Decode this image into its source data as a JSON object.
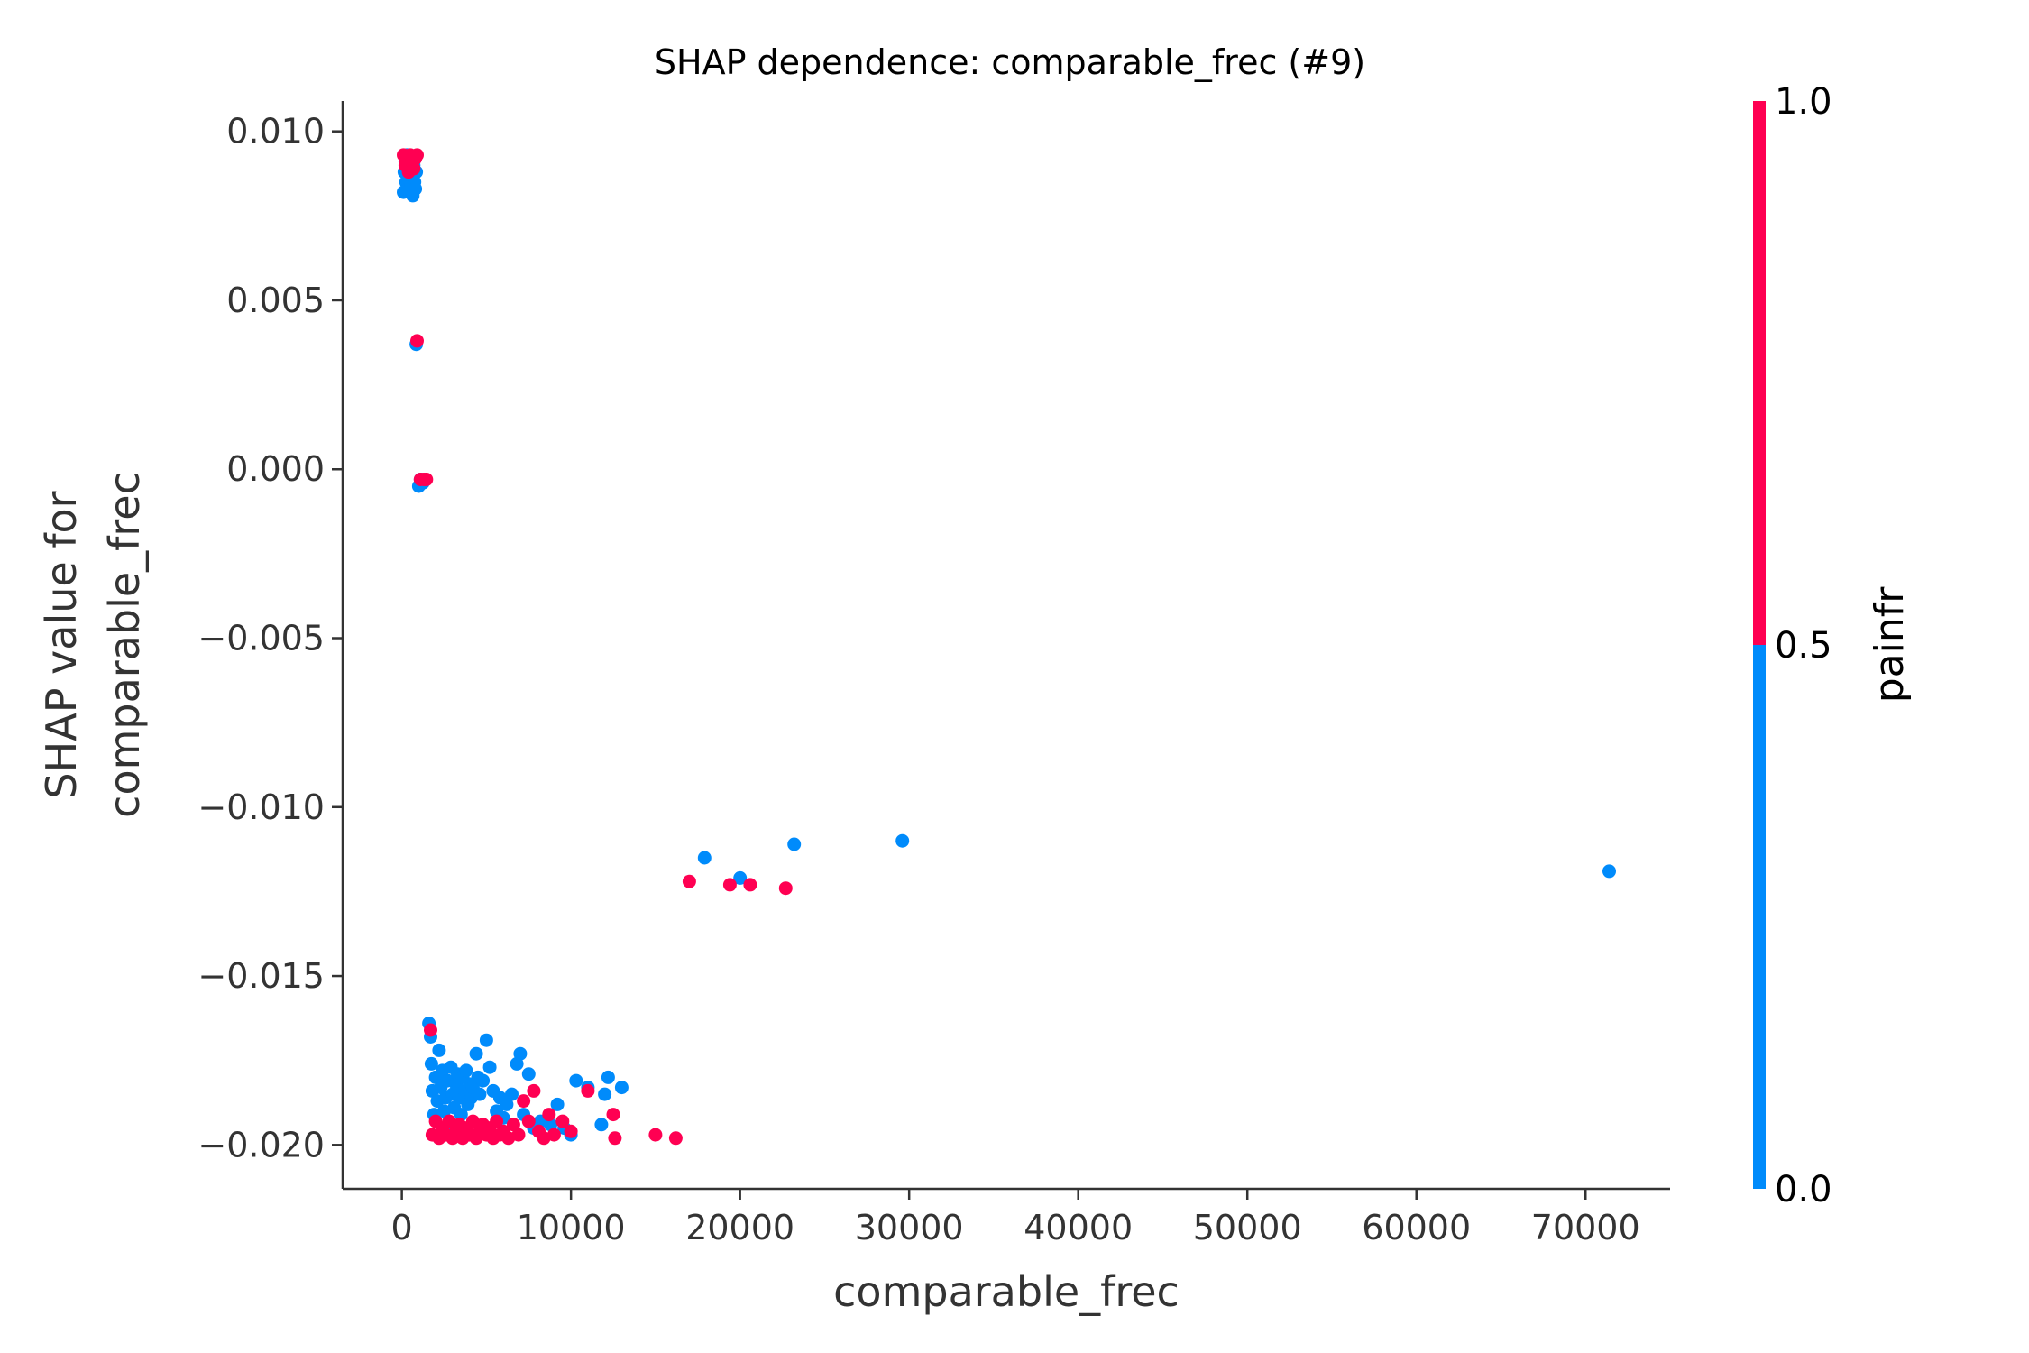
{
  "chart_data": {
    "type": "scatter",
    "title": "SHAP dependence: comparable_frec (#9)",
    "xlabel": "comparable_frec",
    "ylabel_lines": [
      "SHAP value for",
      "comparable_frec"
    ],
    "xlim": [
      -3500,
      75000
    ],
    "ylim": [
      -0.0213,
      0.0109
    ],
    "xticks": [
      0,
      10000,
      20000,
      30000,
      40000,
      50000,
      60000,
      70000
    ],
    "xtick_labels": [
      "0",
      "10000",
      "20000",
      "30000",
      "40000",
      "50000",
      "60000",
      "70000"
    ],
    "yticks": [
      0.01,
      0.005,
      0.0,
      -0.005,
      -0.01,
      -0.015,
      -0.02
    ],
    "ytick_labels": [
      "0.010",
      "0.005",
      "0.000",
      "−0.005",
      "−0.010",
      "−0.015",
      "−0.020"
    ],
    "colorbar": {
      "label": "painfr",
      "ticks": [
        0.0,
        0.5,
        1.0
      ],
      "tick_labels": [
        "0.0",
        "0.5",
        "1.0"
      ],
      "low_color": "#008bfb",
      "high_color": "#ff0052"
    },
    "series": [
      {
        "name": "painfr = 0",
        "color": "#008bfb",
        "points": [
          [
            100,
            0.0082
          ],
          [
            150,
            0.0088
          ],
          [
            200,
            0.0091
          ],
          [
            250,
            0.0085
          ],
          [
            300,
            0.0093
          ],
          [
            350,
            0.0083
          ],
          [
            400,
            0.0089
          ],
          [
            450,
            0.0086
          ],
          [
            500,
            0.0092
          ],
          [
            550,
            0.0084
          ],
          [
            600,
            0.0087
          ],
          [
            650,
            0.0081
          ],
          [
            700,
            0.009
          ],
          [
            750,
            0.0085
          ],
          [
            800,
            0.0083
          ],
          [
            850,
            0.0088
          ],
          [
            850,
            0.0037
          ],
          [
            1000,
            -0.0005
          ],
          [
            1100,
            -0.0003
          ],
          [
            1250,
            -0.0004
          ],
          [
            1600,
            -0.0164
          ],
          [
            1700,
            -0.0168
          ],
          [
            1750,
            -0.0176
          ],
          [
            1800,
            -0.0184
          ],
          [
            1900,
            -0.0191
          ],
          [
            2000,
            -0.018
          ],
          [
            2100,
            -0.0187
          ],
          [
            2200,
            -0.0172
          ],
          [
            2300,
            -0.0183
          ],
          [
            2400,
            -0.0178
          ],
          [
            2500,
            -0.019
          ],
          [
            2600,
            -0.0186
          ],
          [
            2700,
            -0.0181
          ],
          [
            2800,
            -0.0194
          ],
          [
            2900,
            -0.0177
          ],
          [
            3000,
            -0.0185
          ],
          [
            3100,
            -0.0189
          ],
          [
            3200,
            -0.0182
          ],
          [
            3300,
            -0.0179
          ],
          [
            3400,
            -0.0186
          ],
          [
            3500,
            -0.0191
          ],
          [
            3600,
            -0.018
          ],
          [
            3700,
            -0.0184
          ],
          [
            3800,
            -0.0178
          ],
          [
            3900,
            -0.0188
          ],
          [
            4000,
            -0.0182
          ],
          [
            4100,
            -0.0186
          ],
          [
            4200,
            -0.0183
          ],
          [
            4400,
            -0.0173
          ],
          [
            4500,
            -0.018
          ],
          [
            4600,
            -0.0185
          ],
          [
            4800,
            -0.0181
          ],
          [
            5000,
            -0.0169
          ],
          [
            5200,
            -0.0177
          ],
          [
            5400,
            -0.0184
          ],
          [
            5600,
            -0.019
          ],
          [
            5800,
            -0.0186
          ],
          [
            6000,
            -0.0192
          ],
          [
            6200,
            -0.0188
          ],
          [
            6500,
            -0.0185
          ],
          [
            6800,
            -0.0176
          ],
          [
            7000,
            -0.0173
          ],
          [
            7200,
            -0.0191
          ],
          [
            7500,
            -0.0179
          ],
          [
            7800,
            -0.0195
          ],
          [
            8200,
            -0.0193
          ],
          [
            8800,
            -0.0194
          ],
          [
            9200,
            -0.0188
          ],
          [
            9600,
            -0.0195
          ],
          [
            10000,
            -0.0197
          ],
          [
            10300,
            -0.0181
          ],
          [
            11000,
            -0.0183
          ],
          [
            11800,
            -0.0194
          ],
          [
            12000,
            -0.0185
          ],
          [
            12200,
            -0.018
          ],
          [
            13000,
            -0.0183
          ],
          [
            17900,
            -0.0115
          ],
          [
            20000,
            -0.0121
          ],
          [
            23200,
            -0.0111
          ],
          [
            29600,
            -0.011
          ],
          [
            71400,
            -0.0119
          ]
        ]
      },
      {
        "name": "painfr = 1",
        "color": "#ff0052",
        "points": [
          [
            100,
            0.0093
          ],
          [
            200,
            0.009
          ],
          [
            300,
            0.0092
          ],
          [
            400,
            0.0088
          ],
          [
            500,
            0.0093
          ],
          [
            600,
            0.0091
          ],
          [
            700,
            0.0089
          ],
          [
            800,
            0.0092
          ],
          [
            900,
            0.0093
          ],
          [
            900,
            0.0038
          ],
          [
            1100,
            -0.0003
          ],
          [
            1300,
            -0.0003
          ],
          [
            1450,
            -0.0003
          ],
          [
            1700,
            -0.0166
          ],
          [
            1800,
            -0.0197
          ],
          [
            2000,
            -0.0193
          ],
          [
            2200,
            -0.0198
          ],
          [
            2400,
            -0.0195
          ],
          [
            2600,
            -0.0197
          ],
          [
            2800,
            -0.0193
          ],
          [
            3000,
            -0.0198
          ],
          [
            3200,
            -0.0196
          ],
          [
            3400,
            -0.0194
          ],
          [
            3600,
            -0.0198
          ],
          [
            3800,
            -0.0195
          ],
          [
            4000,
            -0.0197
          ],
          [
            4200,
            -0.0193
          ],
          [
            4400,
            -0.0198
          ],
          [
            4600,
            -0.0196
          ],
          [
            4800,
            -0.0194
          ],
          [
            5000,
            -0.0197
          ],
          [
            5200,
            -0.0195
          ],
          [
            5400,
            -0.0198
          ],
          [
            5600,
            -0.0193
          ],
          [
            5800,
            -0.0197
          ],
          [
            6000,
            -0.0196
          ],
          [
            6300,
            -0.0198
          ],
          [
            6600,
            -0.0194
          ],
          [
            6900,
            -0.0197
          ],
          [
            7200,
            -0.0187
          ],
          [
            7500,
            -0.0193
          ],
          [
            7800,
            -0.0184
          ],
          [
            8100,
            -0.0196
          ],
          [
            8400,
            -0.0198
          ],
          [
            8700,
            -0.0191
          ],
          [
            9000,
            -0.0197
          ],
          [
            9500,
            -0.0193
          ],
          [
            10000,
            -0.0196
          ],
          [
            11000,
            -0.0184
          ],
          [
            12500,
            -0.0191
          ],
          [
            12600,
            -0.0198
          ],
          [
            15000,
            -0.0197
          ],
          [
            16200,
            -0.0198
          ],
          [
            17000,
            -0.0122
          ],
          [
            19400,
            -0.0123
          ],
          [
            20600,
            -0.0123
          ],
          [
            22700,
            -0.0124
          ]
        ]
      }
    ]
  }
}
